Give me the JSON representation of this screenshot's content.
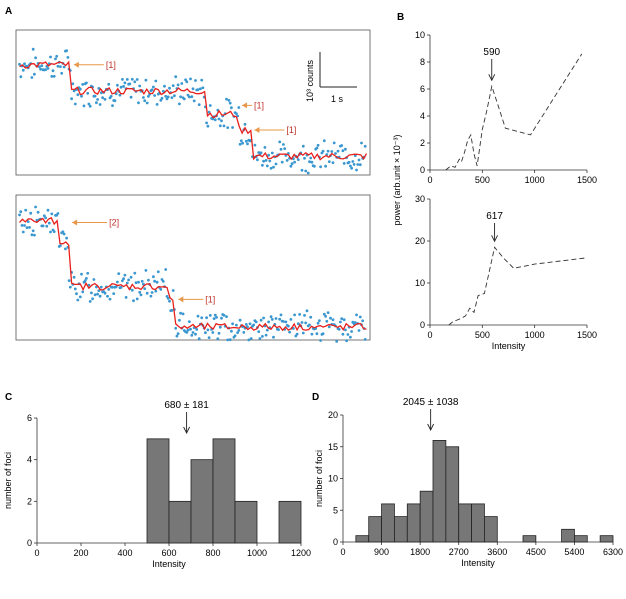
{
  "panels": {
    "a": "A",
    "b": "B",
    "c": "C",
    "d": "D"
  },
  "scalebar": {
    "y_label": "10³ counts",
    "x_label": "1 s"
  },
  "traces": {
    "top": {
      "steps": [
        {
          "t": 0.0,
          "level": 0.76
        },
        {
          "t": 0.155,
          "level": 0.58
        },
        {
          "t": 0.535,
          "level": 0.42
        },
        {
          "t": 0.63,
          "level": 0.31
        },
        {
          "t": 0.665,
          "level": 0.13
        }
      ],
      "annotations": [
        "[1]",
        "[1]",
        "[1]"
      ]
    },
    "bottom": {
      "steps": [
        {
          "t": 0.0,
          "level": 0.82
        },
        {
          "t": 0.12,
          "level": 0.68
        },
        {
          "t": 0.15,
          "level": 0.37
        },
        {
          "t": 0.43,
          "level": 0.28
        },
        {
          "t": 0.45,
          "level": 0.09
        }
      ],
      "annotations": [
        "[2]",
        "[1]"
      ]
    }
  },
  "chart_data": [
    {
      "panel": "B-top",
      "type": "line",
      "x": [
        150,
        200,
        240,
        280,
        300,
        330,
        360,
        390,
        420,
        450,
        500,
        540,
        590,
        650,
        720,
        960,
        1450
      ],
      "y": [
        0,
        0.3,
        0.2,
        0.8,
        0.6,
        1.3,
        2.2,
        2.6,
        1.2,
        0.3,
        3.0,
        4.3,
        6.2,
        4.8,
        3.1,
        2.6,
        8.6
      ],
      "xlim": [
        0,
        1500
      ],
      "ylim": [
        0,
        10
      ],
      "xticks": [
        0,
        500,
        1000,
        1500
      ],
      "yticks": [
        0,
        2,
        4,
        6,
        8,
        10
      ],
      "annotation": {
        "text": "590",
        "x": 590
      }
    },
    {
      "panel": "B-bottom",
      "type": "line",
      "x": [
        180,
        220,
        260,
        300,
        340,
        380,
        420,
        460,
        520,
        560,
        617,
        700,
        800,
        1000,
        1500
      ],
      "y": [
        0,
        0.8,
        1.2,
        1.6,
        2.2,
        4.0,
        3.0,
        7.0,
        7.5,
        12.0,
        18.5,
        16.0,
        13.5,
        14.5,
        16.0
      ],
      "xlim": [
        0,
        1500
      ],
      "ylim": [
        0,
        30
      ],
      "xticks": [
        0,
        500,
        1000,
        1500
      ],
      "yticks": [
        0,
        10,
        20,
        30
      ],
      "annotation": {
        "text": "617",
        "x": 617
      },
      "xlabel": "Intensity"
    },
    {
      "panel": "C",
      "type": "bar",
      "bin_edges": [
        500,
        600,
        700,
        800,
        900,
        1000,
        1100,
        1200
      ],
      "values": [
        5,
        2,
        4,
        5,
        2,
        0,
        2
      ],
      "xlim": [
        0,
        1200
      ],
      "ylim": [
        0,
        6
      ],
      "xticks": [
        0,
        200,
        400,
        600,
        800,
        1000,
        1200
      ],
      "yticks": [
        0,
        2,
        4,
        6
      ],
      "xlabel": "Intensity",
      "ylabel": "number of foci",
      "annotation": {
        "text": "680 ± 181",
        "x": 680
      }
    },
    {
      "panel": "D",
      "type": "bar",
      "bin_edges": [
        300,
        600,
        900,
        1200,
        1500,
        1800,
        2100,
        2400,
        2700,
        3000,
        3300,
        3600,
        3900,
        4200,
        4500,
        4800,
        5100,
        5400,
        5700,
        6000,
        6300
      ],
      "values": [
        1,
        4,
        6,
        4,
        6,
        8,
        16,
        15,
        6,
        6,
        4,
        0,
        0,
        1,
        0,
        0,
        2,
        1,
        0,
        1
      ],
      "xlim": [
        0,
        6300
      ],
      "ylim": [
        0,
        20
      ],
      "xticks": [
        0,
        900,
        1800,
        2700,
        3600,
        4500,
        5400,
        6300
      ],
      "yticks": [
        0,
        5,
        10,
        15,
        20
      ],
      "xlabel": "Intensity",
      "ylabel": "number of foci",
      "annotation": {
        "text": "2045 ± 1038",
        "x": 2045
      }
    }
  ],
  "b_ylabel": "power (arb.unit  × 10⁻³)",
  "colors": {
    "scatter": "#3a97cf",
    "fit": "#e8201c",
    "arrow": "#e8984a",
    "bar": "#777777",
    "annot": "#c0332b"
  }
}
